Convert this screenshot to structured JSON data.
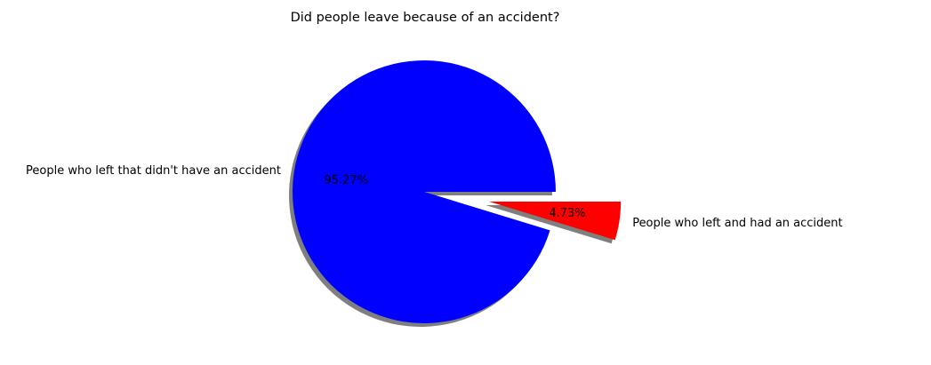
{
  "chart_data": {
    "type": "pie",
    "title": "Did people leave because of an accident?",
    "slices": [
      {
        "label": "People who left that didn't have an accident",
        "value": 95.27,
        "pct_label": "95.27%",
        "color": "#0000ff",
        "exploded": false
      },
      {
        "label": "People who left and had an accident",
        "value": 4.73,
        "pct_label": "4.73%",
        "color": "#ff0000",
        "exploded": true
      }
    ],
    "start_angle_deg": 0,
    "shadow": true,
    "legend": "none"
  }
}
